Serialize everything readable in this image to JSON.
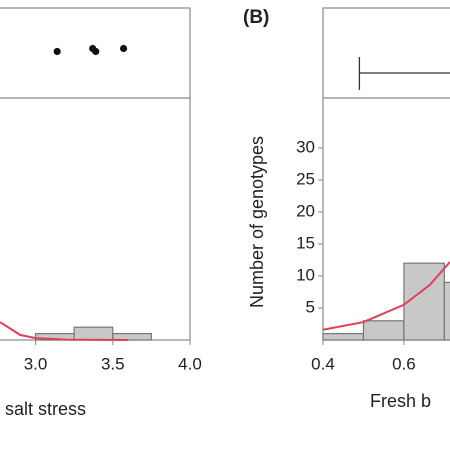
{
  "chart_data": [
    {
      "type": "histogram",
      "bins": [
        3.0,
        3.25,
        3.5,
        3.75
      ],
      "counts": [
        1,
        2,
        1
      ],
      "color": "#c8c8c8",
      "xlim": [
        2.77,
        4.0
      ],
      "xticks": [
        {
          "value": 3.0,
          "label": "3.0"
        },
        3.5,
        {
          "value": 4.0,
          "label": "4.0"
        }
      ],
      "ylim": [
        0,
        37.8
      ],
      "xlabel": "salt stress",
      "points": [
        3.14,
        3.37,
        3.39,
        3.57
      ],
      "fit": {
        "color": "#e0405a",
        "x": [
          2.77,
          2.9,
          3.0,
          3.2,
          3.6
        ],
        "y": [
          2.8,
          0.8,
          0.3,
          0.05,
          0
        ]
      }
    },
    {
      "type": "histogram",
      "title": "(B)",
      "bins": [
        0.4,
        0.5,
        0.6,
        0.7,
        0.8
      ],
      "counts": [
        1,
        3,
        12,
        9
      ],
      "color": "#c8c8c8",
      "xlim": [
        0.4,
        0.714
      ],
      "xticks": [
        0.4,
        0.6
      ],
      "ylim": [
        0,
        37.8
      ],
      "yticks": [
        5,
        10,
        15,
        20,
        25,
        30
      ],
      "ylabel": "Number of genotypes",
      "xlabel": "Fresh b",
      "whisker_low": 0.49,
      "fit": {
        "color": "#e0405a",
        "x": [
          0.4,
          0.5,
          0.6,
          0.664,
          0.714
        ],
        "y": [
          1.6,
          2.8,
          5.5,
          8.6,
          12.2
        ]
      }
    }
  ]
}
